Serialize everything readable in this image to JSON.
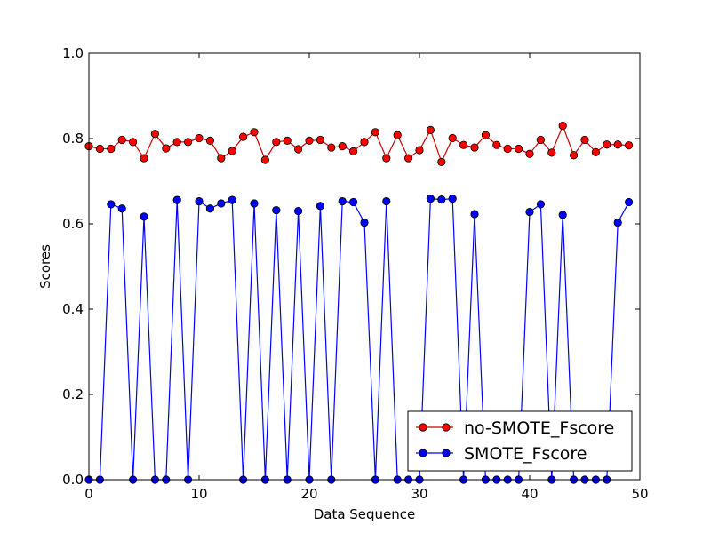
{
  "chart_data": {
    "type": "line",
    "xlabel": "Data Sequence",
    "ylabel": "Scores",
    "xlim": [
      0,
      50
    ],
    "ylim": [
      0,
      1.0
    ],
    "xticks": [
      0,
      10,
      20,
      30,
      40,
      50
    ],
    "yticks": [
      0.0,
      0.2,
      0.4,
      0.6,
      0.8,
      1.0
    ],
    "xtick_labels": [
      "0",
      "10",
      "20",
      "30",
      "40",
      "50"
    ],
    "ytick_labels": [
      "0.0",
      "0.2",
      "0.4",
      "0.6",
      "0.8",
      "1.0"
    ],
    "grid": false,
    "legend_position": "lower-right",
    "x": [
      0,
      1,
      2,
      3,
      4,
      5,
      6,
      7,
      8,
      9,
      10,
      11,
      12,
      13,
      14,
      15,
      16,
      17,
      18,
      19,
      20,
      21,
      22,
      23,
      24,
      25,
      26,
      27,
      28,
      29,
      30,
      31,
      32,
      33,
      34,
      35,
      36,
      37,
      38,
      39,
      40,
      41,
      42,
      43,
      44,
      45,
      46,
      47,
      48,
      49
    ],
    "series": [
      {
        "name": "no-SMOTE_Fscore",
        "color": "#ff0000",
        "line_color": "#cc0000",
        "values": [
          0.782,
          0.776,
          0.776,
          0.797,
          0.792,
          0.754,
          0.811,
          0.777,
          0.792,
          0.792,
          0.801,
          0.795,
          0.754,
          0.771,
          0.804,
          0.815,
          0.75,
          0.792,
          0.795,
          0.775,
          0.795,
          0.797,
          0.779,
          0.782,
          0.77,
          0.792,
          0.815,
          0.754,
          0.808,
          0.754,
          0.773,
          0.82,
          0.745,
          0.801,
          0.785,
          0.779,
          0.808,
          0.785,
          0.776,
          0.776,
          0.764,
          0.797,
          0.767,
          0.83,
          0.761,
          0.797,
          0.768,
          0.786,
          0.786,
          0.784
        ]
      },
      {
        "name": "SMOTE_Fscore",
        "color": "#0000ff",
        "line_color": "#0000ff",
        "values": [
          0.0,
          0.0,
          0.646,
          0.636,
          0.0,
          0.617,
          0.0,
          0.0,
          0.656,
          0.0,
          0.653,
          0.636,
          0.648,
          0.656,
          0.0,
          0.648,
          0.0,
          0.632,
          0.0,
          0.63,
          0.0,
          0.642,
          0.0,
          0.653,
          0.651,
          0.603,
          0.0,
          0.653,
          0.0,
          0.0,
          0.0,
          0.659,
          0.657,
          0.659,
          0.0,
          0.623,
          0.0,
          0.0,
          0.0,
          0.0,
          0.628,
          0.646,
          0.0,
          0.621,
          0.0,
          0.0,
          0.0,
          0.0,
          0.603,
          0.651
        ]
      }
    ]
  }
}
